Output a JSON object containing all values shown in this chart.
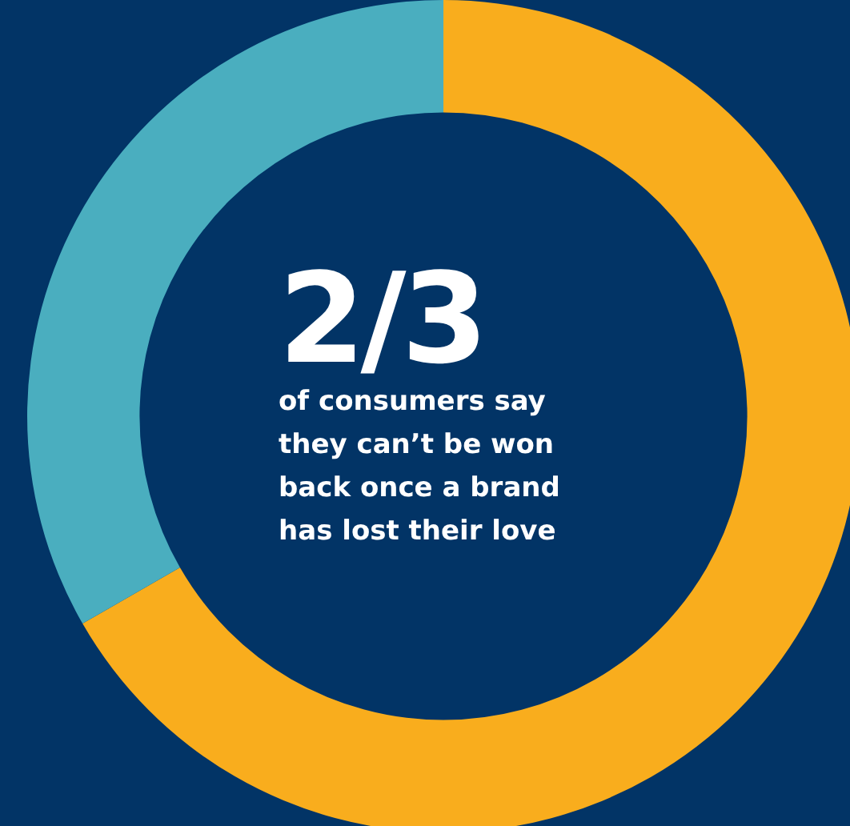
{
  "chart_data": {
    "type": "donut",
    "title": "2/3",
    "subtitle": "of consumers say they can’t be won back once a brand has lost their love",
    "categories": [
      null,
      null
    ],
    "values": [
      66.7,
      33.3
    ],
    "colors": [
      "#f9ad1d",
      "#4aaebf"
    ],
    "legend": false
  }
}
